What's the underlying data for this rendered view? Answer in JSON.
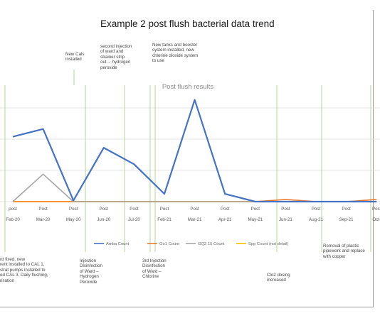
{
  "chart_data": {
    "type": "line",
    "title": "Example 2 post flush bacterial data trend",
    "subtitle": "Post flush results",
    "categories": [
      {
        "line1": "post",
        "line2": "Feb-20"
      },
      {
        "line1": "Post",
        "line2": "Mar-20"
      },
      {
        "line1": "Post",
        "line2": "May-20"
      },
      {
        "line1": "Post",
        "line2": "Jun-20"
      },
      {
        "line1": "Post",
        "line2": "Jul-20"
      },
      {
        "line1": "Post",
        "line2": "Feb-21"
      },
      {
        "line1": "Post",
        "line2": "Mar-21"
      },
      {
        "line1": "Post",
        "line2": "Apr-21"
      },
      {
        "line1": "Post",
        "line2": "May-21"
      },
      {
        "line1": "Post",
        "line2": "Jun-21"
      },
      {
        "line1": "Post",
        "line2": "Aug-21"
      },
      {
        "line1": "Post",
        "line2": "Sep-21"
      },
      {
        "line1": "Post",
        "line2": "Oct-"
      }
    ],
    "series": [
      {
        "name": "Amba Count",
        "color": "#4472c4",
        "values": [
          118,
          132,
          2,
          98,
          68,
          14,
          185,
          14,
          0,
          0,
          0,
          0,
          0
        ]
      },
      {
        "name": "Go1 Count",
        "color": "#ed7d31",
        "values": [
          0,
          0,
          0,
          0,
          0,
          0,
          0,
          0,
          0,
          4,
          0,
          0,
          4
        ]
      },
      {
        "name": "GQ2 15 Count",
        "color": "#a5a5a5",
        "values": [
          0,
          50,
          0,
          0,
          0,
          0,
          0,
          0,
          0,
          0,
          0,
          0,
          0
        ]
      },
      {
        "name": "Spp Count (not detail)",
        "color": "#ffc000",
        "values": [
          0,
          0,
          0,
          0,
          0,
          0,
          0,
          0,
          0,
          0,
          0,
          0,
          0
        ]
      }
    ],
    "ylim": [
      0,
      220
    ],
    "grid": true,
    "legend": "bottom",
    "annotations": {
      "top": [
        {
          "text": "New Cals\ninstalled"
        },
        {
          "text": "second injection\nof ward and\nstrainer strip\nout→ hydrogen\nperoxide"
        },
        {
          "text": "New tanks and booster\nsystem installed, new\nchlorine dioxide system\nto use"
        }
      ],
      "bottom": [
        {
          "text": "rd fixed, new\nrent installed to CAL 1,\nstrat pumps installed to\ned CAL 3. Daily flushing,\nrisation"
        },
        {
          "text": "Injection\nDisinfection\nof Ward –\nHydrogen\nPeroxide"
        },
        {
          "text": "3rd Injection\nDisinfection\nof Ward –\nChlorine"
        },
        {
          "text": "Clo2 dosing\nincreased"
        },
        {
          "text": "Removal of plastic\npipework and replace\nwith copper"
        }
      ]
    }
  }
}
